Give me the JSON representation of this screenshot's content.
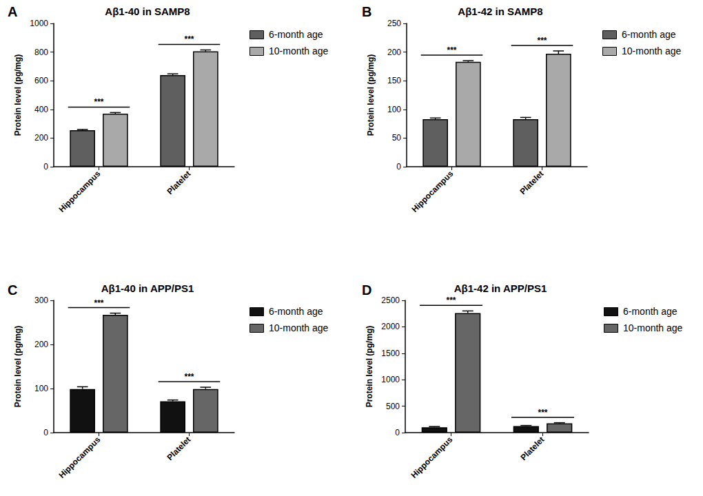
{
  "chart_data": [
    {
      "panel_label": "A",
      "type": "bar",
      "title": "Aβ1-40 in SAMP8",
      "y_label": "Protein level (pg/mg)",
      "categories": [
        "Hippocampus",
        "Platelet"
      ],
      "series": [
        {
          "name": "6-month age",
          "color": "#5f5f5f",
          "values": [
            255,
            640
          ],
          "errors": [
            5,
            8
          ]
        },
        {
          "name": "10-month age",
          "color": "#a9a9a9",
          "values": [
            370,
            805
          ],
          "errors": [
            8,
            10
          ]
        }
      ],
      "ylim": [
        0,
        1000
      ],
      "yticks": [
        0,
        200,
        400,
        600,
        800,
        1000
      ],
      "grid": false,
      "legend": "right",
      "annotations": [
        {
          "text": "***",
          "category": "Hippocampus"
        },
        {
          "text": "***",
          "category": "Platelet"
        }
      ]
    },
    {
      "panel_label": "B",
      "type": "bar",
      "title": "Aβ1-42 in SAMP8",
      "y_label": "Protein level (pg/mg)",
      "categories": [
        "Hippocampus",
        "Platelet"
      ],
      "series": [
        {
          "name": "6-month age",
          "color": "#5f5f5f",
          "values": [
            83,
            83
          ],
          "errors": [
            2,
            3
          ]
        },
        {
          "name": "10-month age",
          "color": "#a9a9a9",
          "values": [
            183,
            197
          ],
          "errors": [
            2,
            5
          ]
        }
      ],
      "ylim": [
        0,
        250
      ],
      "yticks": [
        0,
        50,
        100,
        150,
        200,
        250
      ],
      "grid": false,
      "legend": "right",
      "annotations": [
        {
          "text": "***",
          "category": "Hippocampus"
        },
        {
          "text": "***",
          "category": "Platelet"
        }
      ]
    },
    {
      "panel_label": "C",
      "type": "bar",
      "title": "Aβ1-40 in APP/PS1",
      "y_label": "Protein level (pg/mg)",
      "categories": [
        "Hippocampus",
        "Platelet"
      ],
      "series": [
        {
          "name": "6-month age",
          "color": "#111111",
          "values": [
            99,
            71
          ],
          "errors": [
            5,
            3
          ]
        },
        {
          "name": "10-month age",
          "color": "#666666",
          "values": [
            267,
            99
          ],
          "errors": [
            4,
            4
          ]
        }
      ],
      "ylim": [
        0,
        300
      ],
      "yticks": [
        0,
        100,
        200,
        300
      ],
      "grid": false,
      "legend": "right",
      "annotations": [
        {
          "text": "***",
          "category": "Hippocampus"
        },
        {
          "text": "***",
          "category": "Platelet"
        }
      ]
    },
    {
      "panel_label": "D",
      "type": "bar",
      "title": "Aβ1-42 in APP/PS1",
      "y_label": "Protein level (pg/mg)",
      "categories": [
        "Hippocampus",
        "Platelet"
      ],
      "series": [
        {
          "name": "6-month age",
          "color": "#111111",
          "values": [
            100,
            125
          ],
          "errors": [
            15,
            10
          ]
        },
        {
          "name": "10-month age",
          "color": "#666666",
          "values": [
            2260,
            175
          ],
          "errors": [
            40,
            12
          ]
        }
      ],
      "ylim": [
        0,
        2500
      ],
      "yticks": [
        0,
        500,
        1000,
        1500,
        2000,
        2500
      ],
      "grid": false,
      "legend": "right",
      "annotations": [
        {
          "text": "***",
          "category": "Hippocampus"
        },
        {
          "text": "***",
          "category": "Platelet"
        }
      ]
    }
  ]
}
